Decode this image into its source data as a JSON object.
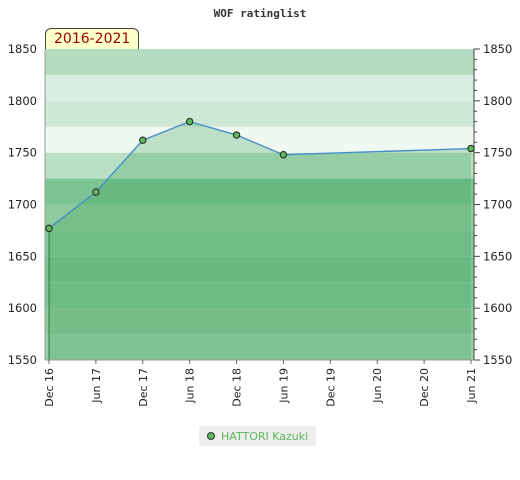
{
  "chart_data": {
    "type": "area",
    "title": "WOF ratinglist",
    "period_label": "2016-2021",
    "categories": [
      "Dec 16",
      "Jun 17",
      "Dec 17",
      "Jun 18",
      "Dec 18",
      "Jun 19",
      "Dec 19",
      "Jun 20",
      "Dec 20",
      "Jun 21"
    ],
    "series": [
      {
        "name": "HATTORI Kazuki",
        "color": "#5cb85c",
        "points": [
          {
            "x": "Dec 16",
            "y": 1677
          },
          {
            "x": "Jun 17",
            "y": 1712
          },
          {
            "x": "Dec 17",
            "y": 1762
          },
          {
            "x": "Jun 18",
            "y": 1780
          },
          {
            "x": "Dec 18",
            "y": 1767
          },
          {
            "x": "Jun 19",
            "y": 1748
          },
          {
            "x": "Jun 21",
            "y": 1754
          }
        ]
      }
    ],
    "y_ticks": [
      1550,
      1600,
      1650,
      1700,
      1750,
      1800,
      1850
    ],
    "ylim": [
      1550,
      1850
    ],
    "y_axis_both_sides": true,
    "legend_position": "bottom",
    "colors": {
      "line": "#4a90c8",
      "marker_fill": "#5cb85c",
      "band_light": "#f0f8f2",
      "band_mid": "#cde8d6",
      "band_dark": "#7cc494",
      "badge_bg": "#ffffc8",
      "badge_text": "#990000"
    }
  }
}
